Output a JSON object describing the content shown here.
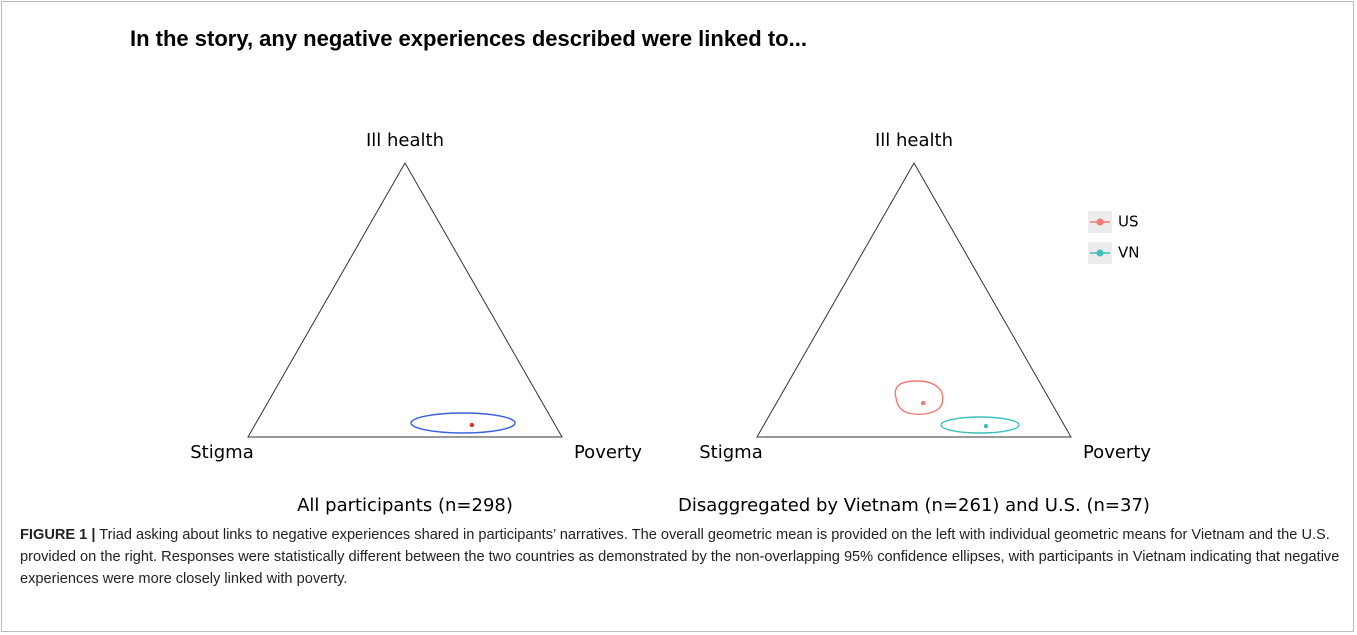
{
  "figure": {
    "title": "In the story, any negative experiences described were linked to...",
    "panels": [
      {
        "vertices": {
          "top": "Ill health",
          "left": "Stigma",
          "right": "Poverty"
        },
        "subtitle": "All participants (n=298)",
        "means": [
          {
            "color": "#e0301e",
            "ellipse_color": "#3b5fd8",
            "stigma": 0.265,
            "poverty": 0.691,
            "ill_health": 0.044
          }
        ]
      },
      {
        "vertices": {
          "top": "Ill health",
          "left": "Stigma",
          "right": "Poverty"
        },
        "subtitle": "Disaggregated by Vietnam (n=261) and U.S. (n=37)",
        "means": [
          {
            "name": "US",
            "color": "#f07a73",
            "ellipse_color": "#f07a73",
            "stigma": 0.409,
            "poverty": 0.467,
            "ill_health": 0.124
          },
          {
            "name": "VN",
            "color": "#3fbfbf",
            "ellipse_color": "#3fbfbf",
            "stigma": 0.251,
            "poverty": 0.709,
            "ill_health": 0.04
          }
        ]
      }
    ],
    "caption_label": "FIGURE 1 |",
    "caption": "Triad asking about links to negative experiences shared in participants’ narratives. The overall geometric mean is provided on the left with individual geometric means for Vietnam and the U.S. provided on the right. Responses were statistically different between the two countries as demonstrated by the non-overlapping 95% confidence ellipses, with participants in Vietnam indicating that negative experiences were more closely linked with poverty."
  }
}
